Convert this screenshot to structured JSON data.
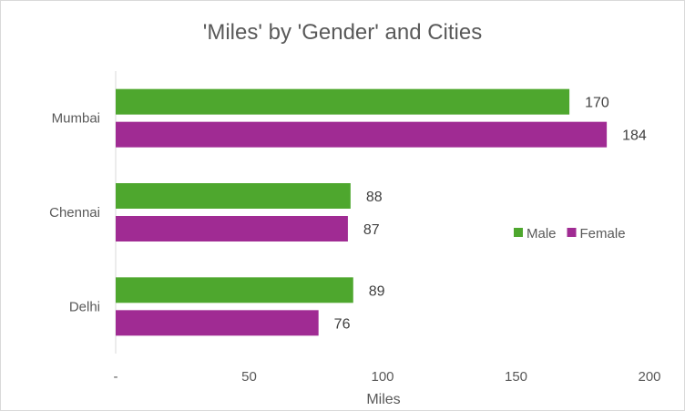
{
  "chart_data": {
    "type": "bar",
    "orientation": "horizontal",
    "title": "'Miles' by 'Gender' and Cities",
    "xlabel": "Miles",
    "ylabel": "",
    "categories": [
      "Mumbai",
      "Chennai",
      "Delhi"
    ],
    "series": [
      {
        "name": "Male",
        "color": "#4ea72e",
        "values": [
          170,
          88,
          89
        ]
      },
      {
        "name": "Female",
        "color": "#a02b93",
        "values": [
          184,
          87,
          76
        ]
      }
    ],
    "xlim": [
      0,
      200
    ],
    "xticks": [
      {
        "value": 0,
        "label": "-"
      },
      {
        "value": 50,
        "label": "50"
      },
      {
        "value": 100,
        "label": "100"
      },
      {
        "value": 150,
        "label": "150"
      },
      {
        "value": 200,
        "label": "200"
      }
    ],
    "data_labels": true,
    "grid": false,
    "legend_position": "right"
  }
}
